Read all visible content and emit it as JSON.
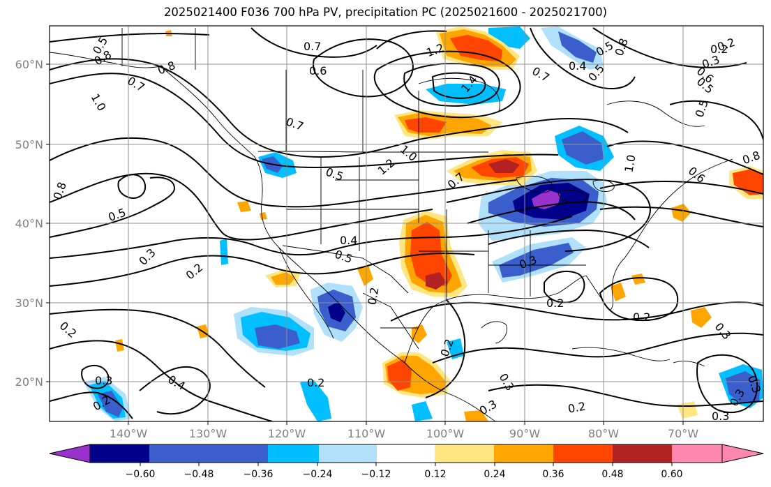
{
  "title": "2025021400 F036 700 hPa PV, precipitation PC (2025021600 - 2025021700)",
  "lat_labels": [
    "60°N",
    "50°N",
    "40°N",
    "30°N",
    "20°N"
  ],
  "lon_labels": [
    "140°W",
    "130°W",
    "120°W",
    "110°W",
    "100°W",
    "90°W",
    "80°W",
    "70°W"
  ],
  "contour_labels": [
    "0.5",
    "0.8",
    "0.8",
    "0.7",
    "1.0",
    "0.8",
    "0.5",
    "0.3",
    "0.2",
    "0.2",
    "0.3",
    "0.2",
    "0.4",
    "0.4",
    "0.5",
    "0.6",
    "1.2",
    "1.4",
    "0.7",
    "0.7",
    "1.0",
    "1.2",
    "0.5",
    "0.7",
    "0.4",
    "0.5",
    "0.7",
    "0.5",
    "0.8",
    "0.2",
    "0.3",
    "0.2",
    "0.6",
    "0.5",
    "0.5",
    "1.0",
    "0.6",
    "0.8",
    "0.3",
    "0.2",
    "0.2",
    "0.2",
    "0.3",
    "0.2",
    "0.3",
    "0.3",
    "0.2",
    "0.3",
    "0.2",
    "0.3",
    "0.3"
  ],
  "colorbar": {
    "ticks": [
      "−0.60",
      "−0.48",
      "−0.36",
      "−0.24",
      "−0.12",
      "0.12",
      "0.24",
      "0.36",
      "0.48",
      "0.60"
    ],
    "colors": [
      "#9932cc",
      "#00008b",
      "#3a5fcd",
      "#00bfff",
      "#b0e0fa",
      "#ffffff",
      "#ffe680",
      "#ffa500",
      "#ff4500",
      "#b22222",
      "#ff88b0"
    ]
  },
  "legend_colors": {
    "neg_060": "#9932cc",
    "neg_048": "#00008b",
    "neg_036": "#3a5fcd",
    "neg_024": "#00bfff",
    "neg_012": "#b0e0fa",
    "pos_012": "#ffe680",
    "pos_024": "#ffa500",
    "pos_036": "#ff4500",
    "pos_048": "#b22222",
    "pos_060": "#ff88b0"
  }
}
